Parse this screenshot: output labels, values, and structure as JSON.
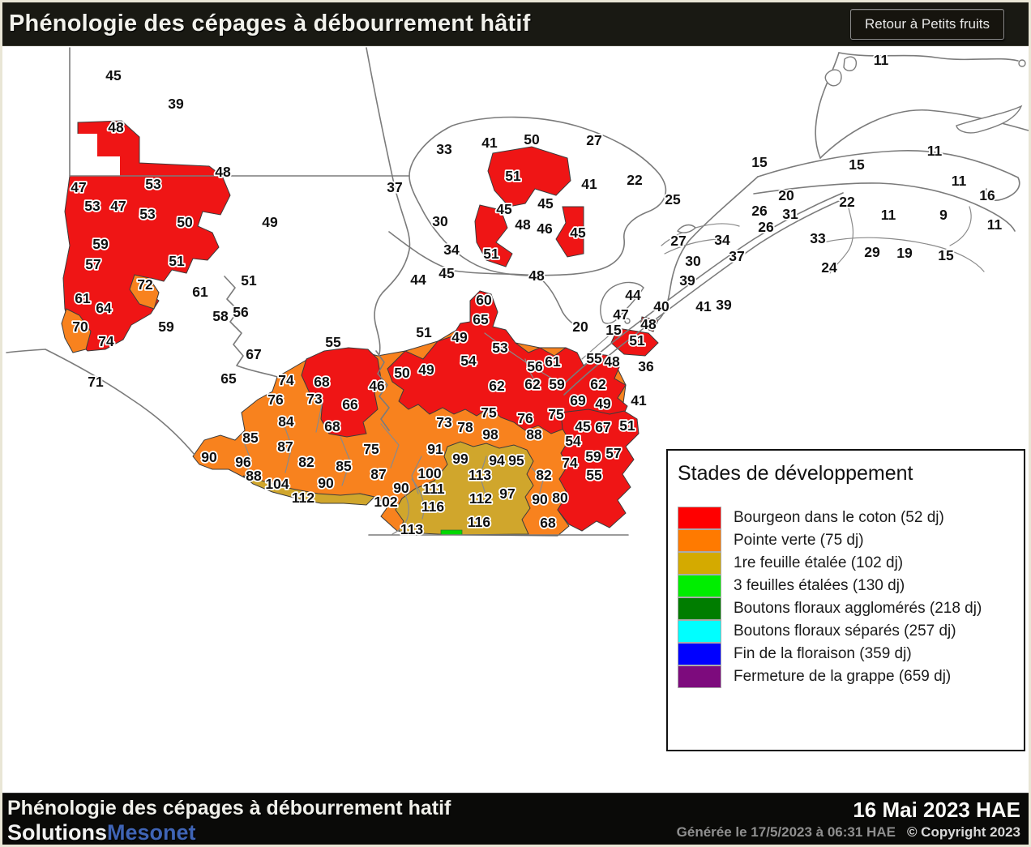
{
  "header": {
    "title": "Phénologie des cépages à débourrement hâtif",
    "back_button": "Retour à Petits fruits"
  },
  "legend": {
    "title": "Stades de développement",
    "items": [
      {
        "color": "#FF0000",
        "label": "Bourgeon dans le coton (52 dj)"
      },
      {
        "color": "#FF7A00",
        "label": "Pointe verte (75 dj)"
      },
      {
        "color": "#D4AA00",
        "label": "1re feuille étalée (102 dj)"
      },
      {
        "color": "#00EE00",
        "label": "3 feuilles étalées (130 dj)"
      },
      {
        "color": "#007D00",
        "label": "Boutons floraux agglomérés (218 dj)"
      },
      {
        "color": "#00FFFF",
        "label": "Boutons floraux séparés (257 dj)"
      },
      {
        "color": "#0000FF",
        "label": "Fin de la floraison (359 dj)"
      },
      {
        "color": "#7D0B7D",
        "label": "Fermeture de la grappe (659 dj)"
      }
    ]
  },
  "map": {
    "colors": {
      "red": "#EF1515",
      "orange": "#F8821E",
      "gold": "#D0A62C",
      "green": "#00D800"
    },
    "labels": [
      [
        45,
        140,
        90
      ],
      [
        39,
        217,
        125
      ],
      [
        48,
        143,
        154
      ],
      [
        48,
        275,
        209
      ],
      [
        47,
        97,
        228
      ],
      [
        53,
        189,
        224
      ],
      [
        53,
        114,
        251
      ],
      [
        47,
        146,
        251
      ],
      [
        53,
        182,
        261
      ],
      [
        50,
        228,
        271
      ],
      [
        49,
        333,
        271
      ],
      [
        59,
        124,
        298
      ],
      [
        57,
        115,
        323
      ],
      [
        51,
        218,
        319
      ],
      [
        72,
        179,
        348
      ],
      [
        61,
        102,
        365
      ],
      [
        64,
        128,
        377
      ],
      [
        70,
        99,
        400
      ],
      [
        74,
        131,
        418
      ],
      [
        71,
        118,
        468
      ],
      [
        59,
        205,
        400
      ],
      [
        61,
        247,
        357
      ],
      [
        51,
        307,
        343
      ],
      [
        58,
        272,
        387
      ],
      [
        56,
        297,
        382
      ],
      [
        67,
        313,
        434
      ],
      [
        65,
        282,
        464
      ],
      [
        55,
        411,
        419
      ],
      [
        33,
        548,
        181
      ],
      [
        41,
        604,
        173
      ],
      [
        50,
        656,
        169
      ],
      [
        27,
        733,
        170
      ],
      [
        37,
        487,
        228
      ],
      [
        51,
        633,
        214
      ],
      [
        41,
        727,
        224
      ],
      [
        22,
        783,
        219
      ],
      [
        25,
        830,
        243
      ],
      [
        45,
        622,
        255
      ],
      [
        45,
        673,
        248
      ],
      [
        48,
        645,
        274
      ],
      [
        46,
        672,
        279
      ],
      [
        45,
        713,
        284
      ],
      [
        30,
        543,
        270
      ],
      [
        34,
        557,
        305
      ],
      [
        51,
        606,
        310
      ],
      [
        44,
        516,
        342
      ],
      [
        45,
        551,
        334
      ],
      [
        48,
        662,
        337
      ],
      [
        27,
        837,
        294
      ],
      [
        30,
        855,
        319
      ],
      [
        34,
        891,
        293
      ],
      [
        37,
        909,
        313
      ],
      [
        39,
        848,
        343
      ],
      [
        26,
        937,
        257
      ],
      [
        31,
        975,
        261
      ],
      [
        20,
        970,
        238
      ],
      [
        26,
        945,
        277
      ],
      [
        22,
        1045,
        246
      ],
      [
        15,
        937,
        197
      ],
      [
        15,
        1057,
        200
      ],
      [
        11,
        1087,
        71
      ],
      [
        11,
        1153,
        183
      ],
      [
        11,
        1183,
        220
      ],
      [
        16,
        1218,
        238
      ],
      [
        9,
        1164,
        262
      ],
      [
        11,
        1096,
        262
      ],
      [
        11,
        1227,
        274
      ],
      [
        29,
        1076,
        308
      ],
      [
        19,
        1116,
        309
      ],
      [
        15,
        1167,
        312
      ],
      [
        24,
        1023,
        327
      ],
      [
        33,
        1009,
        291
      ],
      [
        39,
        893,
        373
      ],
      [
        41,
        868,
        375
      ],
      [
        40,
        816,
        375
      ],
      [
        44,
        781,
        361
      ],
      [
        47,
        766,
        385
      ],
      [
        48,
        800,
        397
      ],
      [
        20,
        716,
        400
      ],
      [
        15,
        757,
        404
      ],
      [
        51,
        786,
        417
      ],
      [
        36,
        797,
        449
      ],
      [
        55,
        733,
        439
      ],
      [
        48,
        755,
        443
      ],
      [
        41,
        788,
        491
      ],
      [
        60,
        597,
        367
      ],
      [
        65,
        593,
        391
      ],
      [
        51,
        523,
        407
      ],
      [
        49,
        567,
        413
      ],
      [
        53,
        617,
        426
      ],
      [
        54,
        578,
        442
      ],
      [
        50,
        496,
        457
      ],
      [
        49,
        526,
        453
      ],
      [
        46,
        465,
        473
      ],
      [
        56,
        660,
        449
      ],
      [
        61,
        682,
        443
      ],
      [
        62,
        613,
        473
      ],
      [
        62,
        657,
        471
      ],
      [
        59,
        687,
        471
      ],
      [
        62,
        738,
        471
      ],
      [
        69,
        713,
        491
      ],
      [
        49,
        744,
        495
      ],
      [
        75,
        603,
        506
      ],
      [
        76,
        648,
        513
      ],
      [
        75,
        686,
        508
      ],
      [
        73,
        548,
        518
      ],
      [
        78,
        574,
        524
      ],
      [
        98,
        605,
        533
      ],
      [
        88,
        659,
        533
      ],
      [
        45,
        719,
        523
      ],
      [
        67,
        744,
        524
      ],
      [
        51,
        774,
        522
      ],
      [
        54,
        707,
        541
      ],
      [
        59,
        732,
        560
      ],
      [
        57,
        757,
        556
      ],
      [
        74,
        703,
        568
      ],
      [
        55,
        733,
        583
      ],
      [
        74,
        353,
        466
      ],
      [
        68,
        397,
        468
      ],
      [
        73,
        388,
        489
      ],
      [
        66,
        432,
        496
      ],
      [
        76,
        340,
        490
      ],
      [
        84,
        353,
        517
      ],
      [
        68,
        410,
        523
      ],
      [
        85,
        309,
        537
      ],
      [
        87,
        352,
        548
      ],
      [
        75,
        458,
        551
      ],
      [
        91,
        537,
        551
      ],
      [
        90,
        258,
        561
      ],
      [
        96,
        300,
        567
      ],
      [
        82,
        378,
        567
      ],
      [
        85,
        424,
        572
      ],
      [
        87,
        467,
        582
      ],
      [
        88,
        313,
        584
      ],
      [
        104,
        342,
        594
      ],
      [
        90,
        402,
        593
      ],
      [
        112,
        374,
        611
      ],
      [
        102,
        476,
        616
      ],
      [
        90,
        495,
        599
      ],
      [
        100,
        530,
        581
      ],
      [
        111,
        535,
        600
      ],
      [
        116,
        534,
        622
      ],
      [
        113,
        508,
        650
      ],
      [
        99,
        568,
        563
      ],
      [
        94,
        613,
        565
      ],
      [
        95,
        637,
        565
      ],
      [
        113,
        592,
        583
      ],
      [
        112,
        593,
        612
      ],
      [
        97,
        626,
        606
      ],
      [
        116,
        591,
        641
      ],
      [
        82,
        671,
        583
      ],
      [
        90,
        666,
        613
      ],
      [
        80,
        691,
        611
      ],
      [
        68,
        676,
        642
      ]
    ]
  },
  "footer": {
    "title": "Phénologie des cépages à débourrement hatif",
    "brand_white": "Solutions",
    "brand_blue": "Mesonet",
    "date": "16 Mai 2023 HAE",
    "generated": "Générée le 17/5/2023 à 06:31 HAE",
    "copyright": "© Copyright 2023"
  }
}
